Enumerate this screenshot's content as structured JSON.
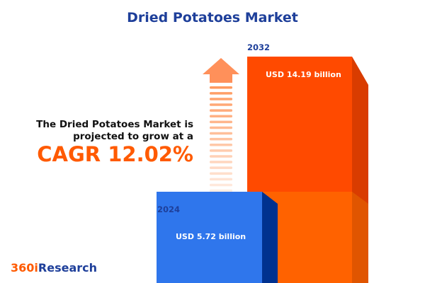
{
  "chart_data": {
    "type": "bar",
    "title": "Dried Potatoes Market",
    "categories": [
      "2024",
      "2032"
    ],
    "values": [
      5.72,
      14.19
    ],
    "value_labels": [
      "USD 5.72 billion",
      "USD 14.19 billion"
    ],
    "unit": "USD billion",
    "colors": {
      "2024": "#2f76ec",
      "2032": "#ff4a00"
    },
    "annotation": {
      "line1": "The Dried Potatoes Market is",
      "line2": "projected to grow at a",
      "cagr": "CAGR 12.02%"
    }
  },
  "brand": {
    "prefix": "360i",
    "suffix": "Research"
  }
}
